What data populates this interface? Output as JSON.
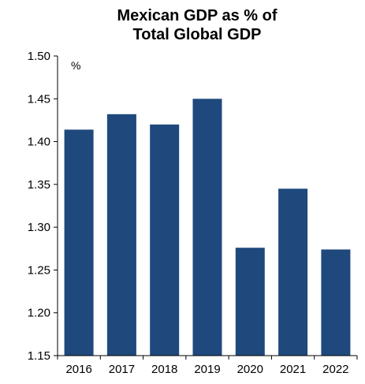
{
  "chart_data": {
    "type": "bar",
    "title_lines": [
      "Mexican GDP as % of",
      "Total Global GDP"
    ],
    "unit_label": "%",
    "categories": [
      "2016",
      "2017",
      "2018",
      "2019",
      "2020",
      "2021",
      "2022"
    ],
    "values": [
      1.414,
      1.432,
      1.42,
      1.45,
      1.276,
      1.345,
      1.274
    ],
    "ylim": [
      1.15,
      1.5
    ],
    "yticks": [
      "1.15",
      "1.20",
      "1.25",
      "1.30",
      "1.35",
      "1.40",
      "1.45",
      "1.50"
    ],
    "grid": false,
    "bar_color": "#1f497d",
    "xlabel": "",
    "ylabel": ""
  }
}
